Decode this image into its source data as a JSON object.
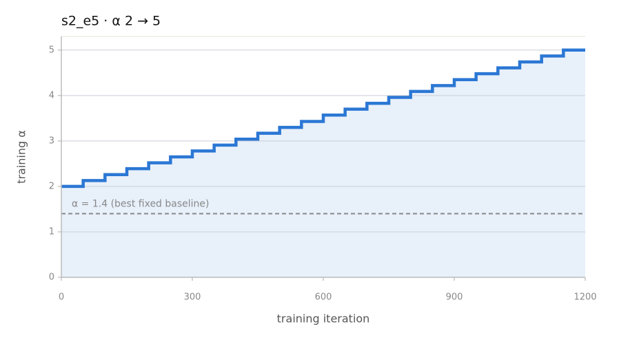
{
  "chart_data": {
    "type": "step",
    "title": "s2_e5   ·   α 2 → 5",
    "x_label": "training iteration",
    "y_label": "training α",
    "x": [
      0,
      50,
      100,
      150,
      200,
      250,
      300,
      350,
      400,
      450,
      500,
      550,
      600,
      650,
      700,
      750,
      800,
      850,
      900,
      950,
      1000,
      1050,
      1100,
      1150,
      1200
    ],
    "series": [
      {
        "name": "training α",
        "color": "#2b77d4",
        "values": [
          2,
          2.13,
          2.26,
          2.39,
          2.52,
          2.65,
          2.78,
          2.91,
          3.04,
          3.17,
          3.3,
          3.43,
          3.57,
          3.7,
          3.83,
          3.96,
          4.09,
          4.22,
          4.35,
          4.48,
          4.61,
          4.74,
          4.87,
          5,
          5
        ]
      }
    ],
    "fill_color": "#e8f0fa",
    "hline": {
      "value": 1.4,
      "label": "α = 1.4 (best fixed baseline)",
      "color": "#888888"
    },
    "xlim": [
      0,
      1200
    ],
    "xticks": [
      0,
      300,
      600,
      900,
      1200
    ],
    "ylim": [
      0,
      5.3
    ],
    "yticks": [
      0,
      1,
      2,
      3,
      4,
      5
    ],
    "grid": true
  }
}
